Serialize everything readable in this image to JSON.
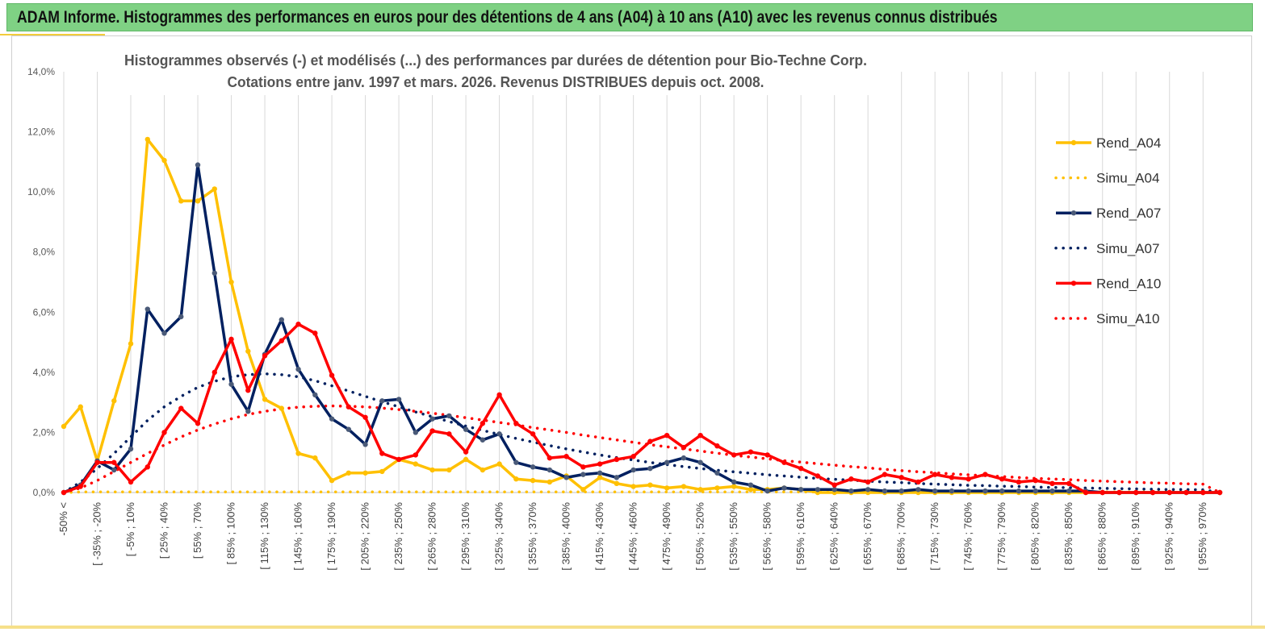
{
  "banner": {
    "title": "ADAM Informe. Histogrammes des performances en euros pour des détentions de 4 ans (A04) à 10 ans (A10) avec les revenus connus distribués"
  },
  "chart_data": {
    "type": "line",
    "title_line1": "Histogrammes observés (-)  et modélisés (...) des performances par durées de détention pour Bio-Techne Corp.",
    "title_line2": "Cotations entre janv. 1997 et mars.  2026.  Revenus DISTRIBUES depuis oct. 2008.",
    "ylim": [
      0,
      14
    ],
    "y_ticks": [
      "0,0%",
      "2,0%",
      "4,0%",
      "6,0%",
      "8,0%",
      "10,0%",
      "12,0%",
      "14,0%"
    ],
    "x_labels": [
      "-50% <",
      "[ -35% ; -20%",
      "[ -5% ; 10%",
      "[ 25% ; 40%",
      "[ 55% ; 70%",
      "[ 85% ; 100%",
      "[ 115% ; 130%",
      "[ 145% ; 160%",
      "[ 175% ; 190%",
      "[ 205% ; 220%",
      "[ 235% ; 250%",
      "[ 265% ; 280%",
      "[ 295% ; 310%",
      "[ 325% ; 340%",
      "[ 355% ; 370%",
      "[ 385% ; 400%",
      "[ 415% ; 430%",
      "[ 445% ; 460%",
      "[ 475% ; 490%",
      "[ 505% ; 520%",
      "[ 535% ; 550%",
      "[ 565% ; 580%",
      "[ 595% ; 610%",
      "[ 625% ; 640%",
      "[ 655% ; 670%",
      "[ 685% ; 700%",
      "[ 715% ; 730%",
      "[ 745% ; 760%",
      "[ 775% ; 790%",
      "[ 805% ; 820%",
      "[ 835% ; 850%",
      "[ 865% ; 880%",
      "[ 895% ; 910%",
      "[ 925% ; 940%",
      "[ 955% ; 970%"
    ],
    "x_label_slots": [
      0,
      2,
      4,
      6,
      8,
      10,
      12,
      14,
      16,
      18,
      20,
      22,
      24,
      26,
      28,
      30,
      32,
      34,
      36,
      38,
      40,
      42,
      44,
      46,
      48,
      50,
      52,
      54,
      56,
      58,
      60,
      62,
      64,
      66,
      68
    ],
    "n_bins": 70,
    "grid": true,
    "legend_position": "right",
    "series": [
      {
        "name": "Rend_A04",
        "color": "#FFC000",
        "style": "solid",
        "values": [
          2.2,
          2.85,
          1.05,
          3.05,
          4.95,
          11.75,
          11.05,
          9.7,
          9.7,
          10.1,
          7.0,
          4.7,
          3.1,
          2.8,
          1.3,
          1.15,
          0.4,
          0.65,
          0.65,
          0.7,
          1.1,
          0.95,
          0.75,
          0.75,
          1.1,
          0.75,
          0.95,
          0.45,
          0.4,
          0.35,
          0.55,
          0.1,
          0.5,
          0.3,
          0.2,
          0.25,
          0.15,
          0.2,
          0.1,
          0.15,
          0.2,
          0.1,
          0.1,
          0.15,
          0.1,
          0.0,
          0.0,
          0.0,
          0.0,
          0.0,
          0.0,
          0.0,
          0.0,
          0.0,
          0.0,
          0.0,
          0.0,
          0.0,
          0.0,
          0.0,
          0.0,
          0.0,
          0.0,
          0.0,
          0.0,
          0.0,
          0.0,
          0.0,
          0.0,
          0.0
        ]
      },
      {
        "name": "Simu_A04",
        "color": "#FFC000",
        "style": "dotted",
        "values": [
          0.0,
          0.02,
          0.02,
          0.02,
          0.02,
          0.02,
          0.02,
          0.02,
          0.02,
          0.02,
          0.02,
          0.02,
          0.02,
          0.02,
          0.02,
          0.02,
          0.02,
          0.02,
          0.02,
          0.02,
          0.02,
          0.02,
          0.02,
          0.02,
          0.02,
          0.02,
          0.02,
          0.02,
          0.02,
          0.02,
          0.02,
          0.02,
          0.02,
          0.02,
          0.02,
          0.02,
          0.02,
          0.02,
          0.02,
          0.02,
          0.02,
          0.02,
          0.02,
          0.02,
          0.02,
          0.02,
          0.02,
          0.02,
          0.02,
          0.02,
          0.02,
          0.02,
          0.02,
          0.02,
          0.02,
          0.02,
          0.02,
          0.02,
          0.02,
          0.02,
          0.02,
          0.02,
          0.02,
          0.02,
          0.02,
          0.02,
          0.02,
          0.02,
          0.02,
          0.0
        ]
      },
      {
        "name": "Rend_A07",
        "color": "#002060",
        "style": "solid",
        "values": [
          0.0,
          0.25,
          1.05,
          0.75,
          1.45,
          6.1,
          5.3,
          5.85,
          10.9,
          7.3,
          3.6,
          2.7,
          4.6,
          5.75,
          4.1,
          3.25,
          2.45,
          2.1,
          1.6,
          3.05,
          3.1,
          2.0,
          2.45,
          2.55,
          2.1,
          1.75,
          1.95,
          1.0,
          0.85,
          0.75,
          0.5,
          0.6,
          0.65,
          0.5,
          0.75,
          0.8,
          1.0,
          1.15,
          1.0,
          0.65,
          0.35,
          0.25,
          0.05,
          0.15,
          0.1,
          0.1,
          0.1,
          0.05,
          0.1,
          0.05,
          0.05,
          0.1,
          0.05,
          0.05,
          0.05,
          0.05,
          0.05,
          0.05,
          0.05,
          0.05,
          0.05,
          0.05,
          0.0,
          0.0,
          0.0,
          0.0,
          0.0,
          0.0,
          0.0,
          0.0
        ]
      },
      {
        "name": "Simu_A07",
        "color": "#002060",
        "style": "dotted",
        "values": [
          0.0,
          0.35,
          0.8,
          1.3,
          1.85,
          2.4,
          2.85,
          3.2,
          3.5,
          3.7,
          3.85,
          3.92,
          3.95,
          3.92,
          3.85,
          3.72,
          3.55,
          3.38,
          3.2,
          3.02,
          2.85,
          2.68,
          2.52,
          2.36,
          2.21,
          2.07,
          1.93,
          1.8,
          1.68,
          1.56,
          1.45,
          1.35,
          1.25,
          1.16,
          1.08,
          1.0,
          0.93,
          0.86,
          0.8,
          0.74,
          0.69,
          0.64,
          0.59,
          0.55,
          0.51,
          0.47,
          0.44,
          0.41,
          0.38,
          0.35,
          0.33,
          0.3,
          0.28,
          0.26,
          0.24,
          0.23,
          0.21,
          0.2,
          0.18,
          0.17,
          0.16,
          0.15,
          0.14,
          0.13,
          0.12,
          0.11,
          0.1,
          0.1,
          0.09,
          0.0
        ]
      },
      {
        "name": "Rend_A10",
        "color": "#FF0000",
        "style": "solid",
        "values": [
          0.0,
          0.2,
          1.0,
          1.0,
          0.35,
          0.85,
          2.0,
          2.8,
          2.3,
          4.0,
          5.1,
          3.4,
          4.55,
          5.05,
          5.6,
          5.3,
          3.9,
          2.85,
          2.5,
          1.3,
          1.1,
          1.25,
          2.05,
          1.95,
          1.35,
          2.3,
          3.25,
          2.3,
          1.95,
          1.15,
          1.2,
          0.85,
          0.95,
          1.1,
          1.2,
          1.7,
          1.9,
          1.5,
          1.9,
          1.55,
          1.25,
          1.35,
          1.25,
          1.0,
          0.8,
          0.55,
          0.25,
          0.45,
          0.35,
          0.6,
          0.5,
          0.35,
          0.6,
          0.5,
          0.45,
          0.6,
          0.45,
          0.35,
          0.4,
          0.3,
          0.3,
          0.0,
          0.0,
          0.0,
          0.0,
          0.0,
          0.0,
          0.0,
          0.0,
          0.0
        ]
      },
      {
        "name": "Simu_A10",
        "color": "#FF0000",
        "style": "dotted",
        "values": [
          0.0,
          0.15,
          0.4,
          0.7,
          1.0,
          1.3,
          1.58,
          1.85,
          2.08,
          2.28,
          2.45,
          2.6,
          2.7,
          2.78,
          2.84,
          2.87,
          2.88,
          2.87,
          2.85,
          2.81,
          2.76,
          2.7,
          2.64,
          2.57,
          2.49,
          2.41,
          2.33,
          2.25,
          2.16,
          2.08,
          2.0,
          1.91,
          1.83,
          1.75,
          1.67,
          1.59,
          1.52,
          1.45,
          1.38,
          1.31,
          1.24,
          1.18,
          1.12,
          1.06,
          1.01,
          0.96,
          0.91,
          0.86,
          0.82,
          0.77,
          0.73,
          0.69,
          0.66,
          0.62,
          0.59,
          0.56,
          0.53,
          0.5,
          0.47,
          0.45,
          0.43,
          0.4,
          0.38,
          0.36,
          0.34,
          0.32,
          0.31,
          0.29,
          0.28,
          0.0
        ]
      }
    ]
  }
}
